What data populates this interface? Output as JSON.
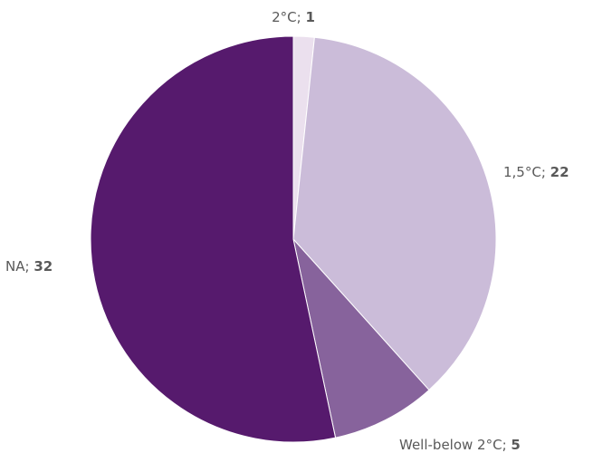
{
  "chart_data": {
    "type": "pie",
    "title": "",
    "legend": "none",
    "start_angle_deg": 0,
    "direction": "clockwise",
    "slices": [
      {
        "label": "2°C",
        "value": 1,
        "color": "#ebe0ee"
      },
      {
        "label": "1,5°C",
        "value": 22,
        "color": "#cbbcd9"
      },
      {
        "label": "Well-below 2°C",
        "value": 5,
        "color": "#87639c"
      },
      {
        "label": "NA",
        "value": 32,
        "color": "#561a6d"
      }
    ],
    "label_separator": "; "
  }
}
